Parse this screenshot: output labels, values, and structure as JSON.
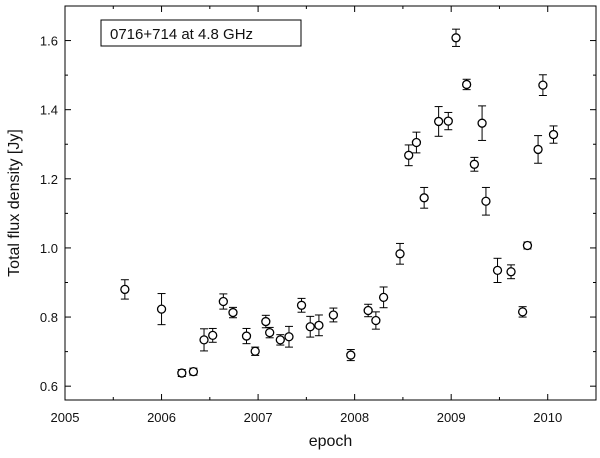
{
  "chart_data": {
    "type": "scatter",
    "annotation": "0716+714 at 4.8 GHz",
    "xlabel": "epoch",
    "ylabel": "Total flux density [Jy]",
    "xlim": [
      2005,
      2010.5
    ],
    "ylim": [
      0.56,
      1.7
    ],
    "xticks": [
      2005,
      2006,
      2007,
      2008,
      2009,
      2010
    ],
    "xtick_labels": [
      "2005",
      "2006",
      "2007",
      "2008",
      "2009",
      "2010"
    ],
    "yticks": [
      0.6,
      0.8,
      1.0,
      1.2,
      1.4,
      1.6
    ],
    "ytick_labels": [
      "0.6",
      "0.8",
      "1.0",
      "1.2",
      "1.4",
      "1.6"
    ],
    "grid": false,
    "marker": "open-circle",
    "points": [
      {
        "x": 2005.62,
        "y": 0.88,
        "err": 0.028
      },
      {
        "x": 2006.0,
        "y": 0.823,
        "err": 0.045
      },
      {
        "x": 2006.21,
        "y": 0.638,
        "err": 0.01
      },
      {
        "x": 2006.33,
        "y": 0.642,
        "err": 0.01
      },
      {
        "x": 2006.44,
        "y": 0.734,
        "err": 0.032
      },
      {
        "x": 2006.53,
        "y": 0.747,
        "err": 0.02
      },
      {
        "x": 2006.64,
        "y": 0.845,
        "err": 0.022
      },
      {
        "x": 2006.74,
        "y": 0.813,
        "err": 0.015
      },
      {
        "x": 2006.88,
        "y": 0.745,
        "err": 0.022
      },
      {
        "x": 2006.97,
        "y": 0.701,
        "err": 0.012
      },
      {
        "x": 2007.08,
        "y": 0.787,
        "err": 0.018
      },
      {
        "x": 2007.12,
        "y": 0.755,
        "err": 0.015
      },
      {
        "x": 2007.23,
        "y": 0.734,
        "err": 0.015
      },
      {
        "x": 2007.32,
        "y": 0.743,
        "err": 0.03
      },
      {
        "x": 2007.45,
        "y": 0.834,
        "err": 0.02
      },
      {
        "x": 2007.54,
        "y": 0.772,
        "err": 0.03
      },
      {
        "x": 2007.63,
        "y": 0.776,
        "err": 0.03
      },
      {
        "x": 2007.78,
        "y": 0.806,
        "err": 0.02
      },
      {
        "x": 2007.96,
        "y": 0.69,
        "err": 0.016
      },
      {
        "x": 2008.14,
        "y": 0.819,
        "err": 0.018
      },
      {
        "x": 2008.22,
        "y": 0.79,
        "err": 0.025
      },
      {
        "x": 2008.3,
        "y": 0.857,
        "err": 0.03
      },
      {
        "x": 2008.47,
        "y": 0.983,
        "err": 0.03
      },
      {
        "x": 2008.56,
        "y": 1.268,
        "err": 0.03
      },
      {
        "x": 2008.64,
        "y": 1.305,
        "err": 0.03
      },
      {
        "x": 2008.72,
        "y": 1.145,
        "err": 0.03
      },
      {
        "x": 2008.87,
        "y": 1.366,
        "err": 0.043
      },
      {
        "x": 2008.97,
        "y": 1.367,
        "err": 0.025
      },
      {
        "x": 2009.05,
        "y": 1.608,
        "err": 0.025
      },
      {
        "x": 2009.16,
        "y": 1.473,
        "err": 0.015
      },
      {
        "x": 2009.24,
        "y": 1.242,
        "err": 0.02
      },
      {
        "x": 2009.32,
        "y": 1.361,
        "err": 0.05
      },
      {
        "x": 2009.36,
        "y": 1.135,
        "err": 0.04
      },
      {
        "x": 2009.48,
        "y": 0.935,
        "err": 0.035
      },
      {
        "x": 2009.62,
        "y": 0.931,
        "err": 0.02
      },
      {
        "x": 2009.74,
        "y": 0.815,
        "err": 0.015
      },
      {
        "x": 2009.79,
        "y": 1.007,
        "err": 0.01
      },
      {
        "x": 2009.9,
        "y": 1.285,
        "err": 0.04
      },
      {
        "x": 2009.95,
        "y": 1.471,
        "err": 0.03
      },
      {
        "x": 2010.06,
        "y": 1.328,
        "err": 0.025
      }
    ]
  }
}
